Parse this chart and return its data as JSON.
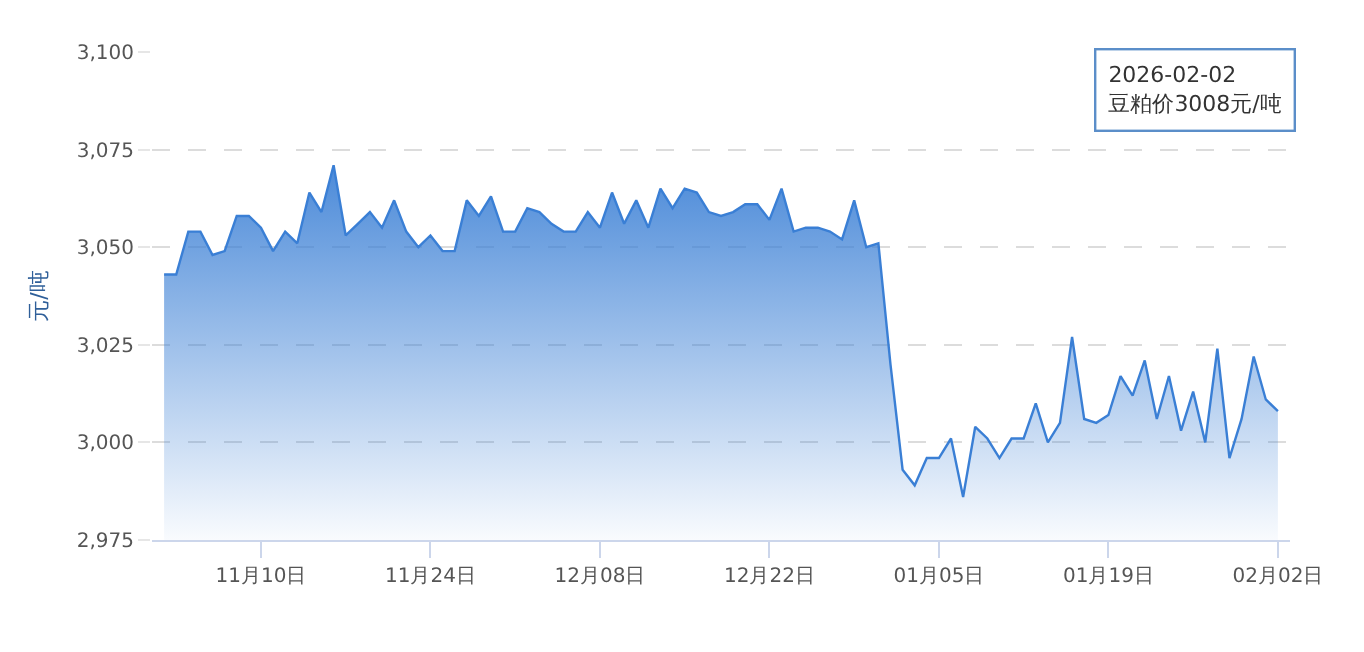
{
  "chart_data": {
    "type": "area",
    "ylabel": "元/吨",
    "x": [
      "2025-11-02",
      "2025-11-03",
      "2025-11-04",
      "2025-11-05",
      "2025-11-06",
      "2025-11-07",
      "2025-11-08",
      "2025-11-09",
      "2025-11-10",
      "2025-11-11",
      "2025-11-12",
      "2025-11-13",
      "2025-11-14",
      "2025-11-15",
      "2025-11-16",
      "2025-11-17",
      "2025-11-18",
      "2025-11-19",
      "2025-11-20",
      "2025-11-21",
      "2025-11-22",
      "2025-11-23",
      "2025-11-24",
      "2025-11-25",
      "2025-11-26",
      "2025-11-27",
      "2025-11-28",
      "2025-11-29",
      "2025-11-30",
      "2025-12-01",
      "2025-12-02",
      "2025-12-03",
      "2025-12-04",
      "2025-12-05",
      "2025-12-06",
      "2025-12-07",
      "2025-12-08",
      "2025-12-09",
      "2025-12-10",
      "2025-12-11",
      "2025-12-12",
      "2025-12-13",
      "2025-12-14",
      "2025-12-15",
      "2025-12-16",
      "2025-12-17",
      "2025-12-18",
      "2025-12-19",
      "2025-12-20",
      "2025-12-21",
      "2025-12-22",
      "2025-12-23",
      "2025-12-24",
      "2025-12-25",
      "2025-12-26",
      "2025-12-27",
      "2025-12-28",
      "2025-12-29",
      "2025-12-30",
      "2025-12-31",
      "2026-01-01",
      "2026-01-02",
      "2026-01-03",
      "2026-01-04",
      "2026-01-05",
      "2026-01-06",
      "2026-01-07",
      "2026-01-08",
      "2026-01-09",
      "2026-01-10",
      "2026-01-11",
      "2026-01-12",
      "2026-01-13",
      "2026-01-14",
      "2026-01-15",
      "2026-01-16",
      "2026-01-17",
      "2026-01-18",
      "2026-01-19",
      "2026-01-20",
      "2026-01-21",
      "2026-01-22",
      "2026-01-23",
      "2026-01-24",
      "2026-01-25",
      "2026-01-26",
      "2026-01-27",
      "2026-01-28",
      "2026-01-29",
      "2026-01-30",
      "2026-01-31",
      "2026-02-01",
      "2026-02-02"
    ],
    "series": [
      {
        "color": "#3a7fd5",
        "values": [
          3043,
          3043,
          3054,
          3054,
          3048,
          3049,
          3058,
          3058,
          3055,
          3049,
          3054,
          3051,
          3064,
          3059,
          3071,
          3053,
          3056,
          3059,
          3055,
          3062,
          3054,
          3050,
          3053,
          3049,
          3049,
          3062,
          3058,
          3063,
          3054,
          3054,
          3060,
          3059,
          3056,
          3054,
          3054,
          3059,
          3055,
          3064,
          3056,
          3062,
          3055,
          3065,
          3060,
          3065,
          3064,
          3059,
          3058,
          3059,
          3061,
          3061,
          3057,
          3065,
          3054,
          3055,
          3055,
          3054,
          3052,
          3062,
          3050,
          3051,
          3020,
          2993,
          2989,
          2996,
          2996,
          3001,
          2986,
          3004,
          3001,
          2996,
          3001,
          3001,
          3010,
          3000,
          3005,
          3027,
          3006,
          3005,
          3007,
          3017,
          3012,
          3021,
          3006,
          3017,
          3003,
          3013,
          3000,
          3024,
          2996,
          3006,
          3022,
          3011,
          3008
        ]
      }
    ],
    "xlim": [
      "2025-11-01",
      "2026-02-03"
    ],
    "xticks": [
      {
        "value": "2025-11-10",
        "label": "11月10日"
      },
      {
        "value": "2025-11-24",
        "label": "11月24日"
      },
      {
        "value": "2025-12-08",
        "label": "12月08日"
      },
      {
        "value": "2025-12-22",
        "label": "12月22日"
      },
      {
        "value": "2026-01-05",
        "label": "01月05日"
      },
      {
        "value": "2026-01-19",
        "label": "01月19日"
      },
      {
        "value": "2026-02-02",
        "label": "02月02日"
      }
    ],
    "ylim": [
      2975,
      3100
    ],
    "yticks": [
      {
        "value": 2975,
        "label": "2,975"
      },
      {
        "value": 3000,
        "label": "3,000"
      },
      {
        "value": 3025,
        "label": "3,025"
      },
      {
        "value": 3050,
        "label": "3,050"
      },
      {
        "value": 3075,
        "label": "3,075"
      },
      {
        "value": 3100,
        "label": "3,100"
      }
    ],
    "grid": "y",
    "annotations": [
      "2026-02-02\n豆粕价3008元/吨"
    ]
  }
}
